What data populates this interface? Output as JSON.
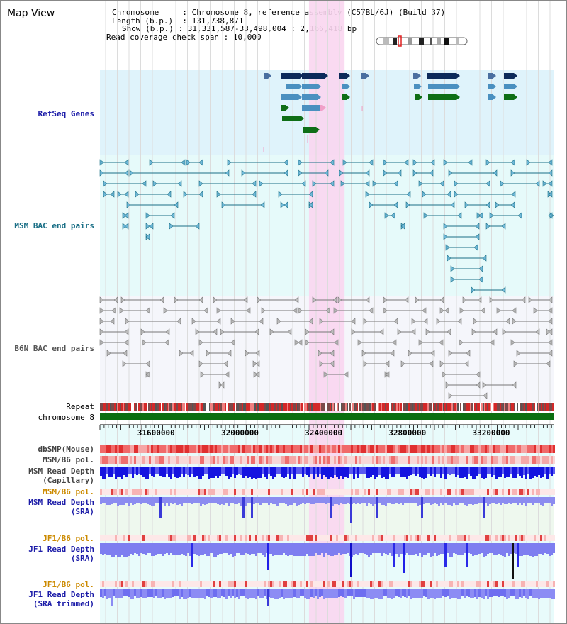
{
  "title": "Map View",
  "info": {
    "chromosome_key": "Chromosome",
    "chromosome": "Chromosome 8, reference assembly (C57BL/6J) (Build 37)",
    "length_key": "Length (b.p.)",
    "length": "131,738,871",
    "show_key": "Show (b.p.)",
    "show": "31,331,587-33,498,004 : 2,166,418 bp",
    "coverage_key": "Read coverage check span",
    "coverage": "10,000"
  },
  "tracks": {
    "refseq": "RefSeq Genes",
    "msm_bac": "MSM BAC end pairs",
    "b6n_bac": "B6N BAC end pairs",
    "repeat": "Repeat",
    "chromosome": "chromosome 8",
    "dbsnp": "dbSNP(Mouse)",
    "msm_b6_pol_1": "MSM/B6 pol.",
    "msm_read_depth_cap_1": "MSM Read Depth",
    "msm_read_depth_cap_2": "(Capillary)",
    "msm_b6_pol_2": "MSM/B6 pol.",
    "msm_read_depth_sra_1": "MSM Read Depth",
    "msm_read_depth_sra_2": "(SRA)",
    "jf1_b6_pol_1": "JF1/B6 pol.",
    "jf1_read_depth_sra_1": "JF1 Read Depth",
    "jf1_read_depth_sra_2": "(SRA)",
    "jf1_b6_pol_2": "JF1/B6 pol.",
    "jf1_read_depth_trim_1": "JF1 Read Depth",
    "jf1_read_depth_trim_2": "(SRA trimmed)"
  },
  "axis": {
    "ticks": [
      "31600000",
      "32000000",
      "32400000",
      "32800000",
      "33200000"
    ],
    "tick_values": [
      31600000,
      32000000,
      32400000,
      32800000,
      33200000
    ],
    "range": [
      31331587,
      33498004
    ]
  },
  "highlight_range": [
    32330000,
    32500000
  ],
  "colors": {
    "refseq_bg": "#dff3fb",
    "msm_bg": "#e6fafa",
    "b6n_bg": "#f5f6fb",
    "highlight": "#f9d6ef",
    "gene_dark": "#0c2a5a",
    "gene_mid": "#4a90c0",
    "gene_green": "#0e6e16",
    "msm_line": "#1a6f86",
    "b6n_line": "#777777",
    "chromosome": "#0b6e10",
    "label_blue": "#1c1ca8",
    "label_orange": "#cc8a00",
    "label_black": "#222222"
  }
}
